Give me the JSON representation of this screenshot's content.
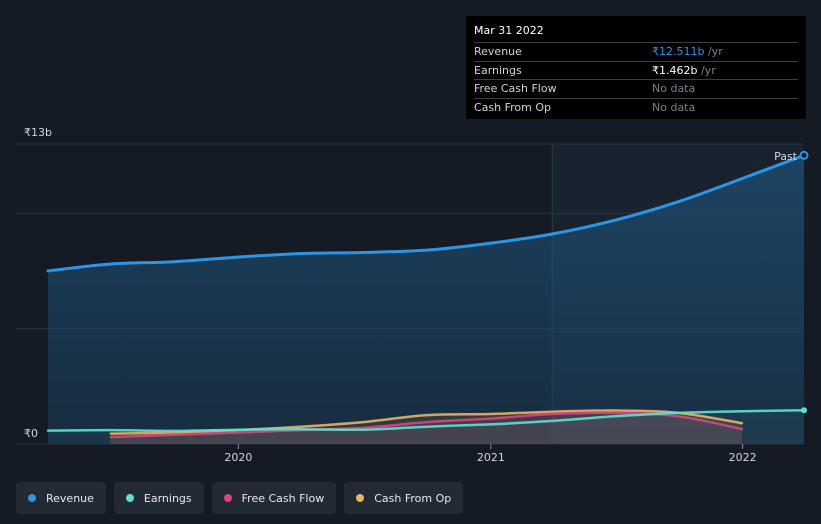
{
  "tooltip": {
    "date": "Mar 31 2022",
    "rows": [
      {
        "label": "Revenue",
        "value": "₹12.511b",
        "unit": " /yr"
      },
      {
        "label": "Earnings",
        "value": "₹1.462b",
        "unit": " /yr"
      },
      {
        "label": "Free Cash Flow",
        "value": "No data"
      },
      {
        "label": "Cash From Op",
        "value": "No data"
      }
    ]
  },
  "past_label": "Past",
  "legend": [
    {
      "label": "Revenue",
      "color": "#2e94e6"
    },
    {
      "label": "Earnings",
      "color": "#5fe0d2"
    },
    {
      "label": "Free Cash Flow",
      "color": "#d9467e"
    },
    {
      "label": "Cash From Op",
      "color": "#e9b363"
    }
  ],
  "chart_data": {
    "type": "line",
    "ylabel_top": "₹13b",
    "ylabel_bottom": "₹0",
    "ylim": [
      0,
      13
    ],
    "xlim": [
      "2019-03-31",
      "2022-03-31"
    ],
    "x_ticks": [
      {
        "label": "2020",
        "date": "2020-01-01"
      },
      {
        "label": "2021",
        "date": "2021-01-01"
      },
      {
        "label": "2022",
        "date": "2022-01-01"
      }
    ],
    "highlight_from": "2021-03-31",
    "series": [
      {
        "name": "Revenue",
        "color": "#2e94e6",
        "points": [
          [
            "2019-03-31",
            7.5
          ],
          [
            "2019-06-30",
            7.8
          ],
          [
            "2019-09-30",
            7.9
          ],
          [
            "2019-12-31",
            8.1
          ],
          [
            "2020-03-31",
            8.25
          ],
          [
            "2020-06-30",
            8.3
          ],
          [
            "2020-09-30",
            8.4
          ],
          [
            "2020-12-31",
            8.7
          ],
          [
            "2021-03-31",
            9.1
          ],
          [
            "2021-06-30",
            9.7
          ],
          [
            "2021-09-30",
            10.5
          ],
          [
            "2021-12-31",
            11.5
          ],
          [
            "2022-03-31",
            12.511
          ]
        ]
      },
      {
        "name": "Earnings",
        "color": "#5fe0d2",
        "points": [
          [
            "2019-03-31",
            0.58
          ],
          [
            "2019-06-30",
            0.6
          ],
          [
            "2019-09-30",
            0.57
          ],
          [
            "2019-12-31",
            0.62
          ],
          [
            "2020-03-31",
            0.64
          ],
          [
            "2020-06-30",
            0.62
          ],
          [
            "2020-09-30",
            0.75
          ],
          [
            "2020-12-31",
            0.85
          ],
          [
            "2021-03-31",
            1.0
          ],
          [
            "2021-06-30",
            1.2
          ],
          [
            "2021-09-30",
            1.35
          ],
          [
            "2021-12-31",
            1.42
          ],
          [
            "2022-03-31",
            1.462
          ]
        ]
      },
      {
        "name": "Free Cash Flow",
        "color": "#d9467e",
        "points": [
          [
            "2019-06-30",
            0.3
          ],
          [
            "2019-09-30",
            0.4
          ],
          [
            "2019-12-31",
            0.5
          ],
          [
            "2020-03-31",
            0.6
          ],
          [
            "2020-06-30",
            0.7
          ],
          [
            "2020-09-30",
            0.95
          ],
          [
            "2020-12-31",
            1.1
          ],
          [
            "2021-03-31",
            1.3
          ],
          [
            "2021-06-30",
            1.35
          ],
          [
            "2021-09-30",
            1.2
          ],
          [
            "2021-12-31",
            0.65
          ]
        ]
      },
      {
        "name": "Cash From Op",
        "color": "#e9b363",
        "points": [
          [
            "2019-06-30",
            0.45
          ],
          [
            "2019-09-30",
            0.5
          ],
          [
            "2019-12-31",
            0.6
          ],
          [
            "2020-03-31",
            0.75
          ],
          [
            "2020-06-30",
            0.95
          ],
          [
            "2020-09-30",
            1.25
          ],
          [
            "2020-12-31",
            1.3
          ],
          [
            "2021-03-31",
            1.4
          ],
          [
            "2021-06-30",
            1.45
          ],
          [
            "2021-09-30",
            1.35
          ],
          [
            "2021-12-31",
            0.9
          ]
        ]
      }
    ]
  }
}
